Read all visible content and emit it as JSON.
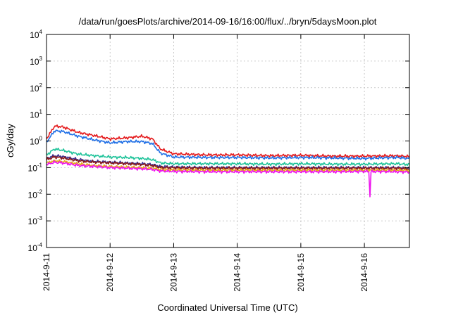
{
  "chart_data": {
    "type": "line",
    "title": "/data/run/goesPlots/archive/2014-09-16/16:00/flux/../bryn/5daysMoon.plot",
    "xlabel": "Coordinated Universal Time (UTC)",
    "ylabel": "cGy/day",
    "yscale": "log",
    "ylim": [
      0.0001,
      10000
    ],
    "y_ticks": [
      {
        "base": "10",
        "exp": "-4",
        "value": 0.0001
      },
      {
        "base": "10",
        "exp": "-3",
        "value": 0.001
      },
      {
        "base": "10",
        "exp": "-2",
        "value": 0.01
      },
      {
        "base": "10",
        "exp": "-1",
        "value": 0.1
      },
      {
        "base": "10",
        "exp": "0",
        "value": 1
      },
      {
        "base": "10",
        "exp": "1",
        "value": 10
      },
      {
        "base": "10",
        "exp": "2",
        "value": 100
      },
      {
        "base": "10",
        "exp": "3",
        "value": 1000
      },
      {
        "base": "10",
        "exp": "4",
        "value": 10000
      }
    ],
    "xlim": [
      "2014-09-11T00:00",
      "2014-09-16T17:00"
    ],
    "x_ticks": [
      {
        "label": "2014-9-11",
        "value": "2014-09-11T00:00"
      },
      {
        "label": "2014-9-12",
        "value": "2014-09-12T00:00"
      },
      {
        "label": "2014-9-13",
        "value": "2014-09-13T00:00"
      },
      {
        "label": "2014-9-14",
        "value": "2014-09-14T00:00"
      },
      {
        "label": "2014-9-15",
        "value": "2014-09-15T00:00"
      },
      {
        "label": "2014-9-16",
        "value": "2014-09-16T00:00"
      }
    ],
    "grid": true,
    "x": [
      "2014-09-11T00:00",
      "2014-09-11T03:00",
      "2014-09-11T06:00",
      "2014-09-11T12:00",
      "2014-09-11T18:00",
      "2014-09-12T00:00",
      "2014-09-12T06:00",
      "2014-09-12T12:00",
      "2014-09-12T16:00",
      "2014-09-12T19:00",
      "2014-09-13T00:00",
      "2014-09-13T12:00",
      "2014-09-14T00:00",
      "2014-09-14T12:00",
      "2014-09-15T00:00",
      "2014-09-15T12:00",
      "2014-09-16T00:00",
      "2014-09-16T12:00",
      "2014-09-16T17:00"
    ],
    "series": [
      {
        "color": "#e41a1c",
        "values": [
          1.2,
          3.6,
          3.4,
          2.1,
          1.6,
          1.2,
          1.3,
          1.5,
          1.2,
          0.5,
          0.33,
          0.3,
          0.3,
          0.28,
          0.29,
          0.27,
          0.27,
          0.28,
          0.26
        ]
      },
      {
        "color": "#1f6fe6",
        "values": [
          0.9,
          2.4,
          2.3,
          1.5,
          1.1,
          0.85,
          0.95,
          0.95,
          0.8,
          0.35,
          0.25,
          0.24,
          0.24,
          0.23,
          0.24,
          0.23,
          0.22,
          0.24,
          0.22
        ]
      },
      {
        "color": "#1fc39a",
        "values": [
          0.3,
          0.5,
          0.45,
          0.32,
          0.28,
          0.25,
          0.24,
          0.22,
          0.2,
          0.15,
          0.14,
          0.14,
          0.14,
          0.135,
          0.14,
          0.135,
          0.135,
          0.14,
          0.13
        ]
      },
      {
        "color": "#3a2f8f",
        "values": [
          0.22,
          0.28,
          0.26,
          0.2,
          0.17,
          0.16,
          0.15,
          0.14,
          0.13,
          0.11,
          0.105,
          0.1,
          0.1,
          0.1,
          0.1,
          0.1,
          0.1,
          0.1,
          0.095
        ]
      },
      {
        "color": "#8b1a1a",
        "values": [
          0.2,
          0.25,
          0.23,
          0.18,
          0.16,
          0.15,
          0.14,
          0.13,
          0.12,
          0.1,
          0.098,
          0.095,
          0.095,
          0.095,
          0.095,
          0.095,
          0.095,
          0.095,
          0.09
        ]
      },
      {
        "color": "#e6a817",
        "values": [
          0.15,
          0.18,
          0.17,
          0.14,
          0.12,
          0.11,
          0.105,
          0.1,
          0.095,
          0.085,
          0.082,
          0.08,
          0.08,
          0.08,
          0.08,
          0.08,
          0.08,
          0.08,
          0.078
        ]
      },
      {
        "color": "#ee11ee",
        "values": [
          0.13,
          0.16,
          0.15,
          0.12,
          0.11,
          0.1,
          0.095,
          0.09,
          0.085,
          0.075,
          0.072,
          0.07,
          0.07,
          0.07,
          0.07,
          0.07,
          0.072,
          0.07,
          0.068
        ]
      }
    ],
    "spikes": [
      {
        "series": 6,
        "x": "2014-09-16T02:00",
        "value": 0.008
      }
    ]
  }
}
